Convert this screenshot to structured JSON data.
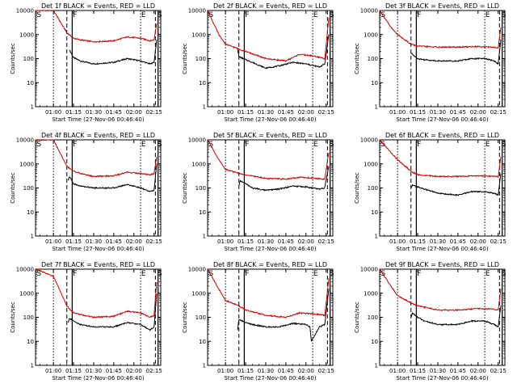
{
  "chart_data": [
    {
      "type": "line",
      "title": "Det 1f BLACK = Events, RED = LLD",
      "xlabel": "Start Time (27-Nov-06 00:46:40)",
      "ylabel": "Counts/sec",
      "yscale": "log",
      "ylim": [
        1,
        10000
      ],
      "x_tick_labels": [
        "01:00",
        "01:15",
        "01:30",
        "01:45",
        "02:00",
        "02:15"
      ],
      "y_tick_labels": [
        "1",
        "10",
        "100",
        "1000",
        "10000"
      ],
      "markers": [
        "S",
        "F",
        "E",
        "S"
      ],
      "series": [
        {
          "color": "#000000",
          "x": [
            "01:12",
            "01:13",
            "01:15",
            "01:20",
            "01:30",
            "01:45",
            "01:55",
            "02:05",
            "02:12",
            "02:15",
            "02:17"
          ],
          "y": [
            220,
            180,
            110,
            80,
            60,
            70,
            100,
            80,
            60,
            70,
            600
          ]
        },
        {
          "color": "#d00000",
          "x": [
            "00:46:40",
            "01:00",
            "01:10",
            "01:15",
            "01:20",
            "01:30",
            "01:45",
            "01:55",
            "02:05",
            "02:12",
            "02:15",
            "02:17"
          ],
          "y": [
            10000,
            10000,
            1200,
            700,
            600,
            500,
            550,
            800,
            700,
            550,
            600,
            3000
          ]
        }
      ]
    },
    {
      "type": "line",
      "title": "Det 2f BLACK = Events, RED = LLD",
      "xlabel": "Start Time (27-Nov-06 00:46:40)",
      "ylabel": "Counts/sec",
      "yscale": "log",
      "ylim": [
        1,
        10000
      ],
      "x_tick_labels": [
        "01:00",
        "01:15",
        "01:30",
        "01:45",
        "02:00",
        "02:15"
      ],
      "y_tick_labels": [
        "1",
        "10",
        "100",
        "1000",
        "10000"
      ],
      "markers": [
        "S",
        "F",
        "E",
        "S"
      ],
      "series": [
        {
          "color": "#000000",
          "x": [
            "01:09",
            "01:10",
            "01:15",
            "01:20",
            "01:30",
            "01:40",
            "01:50",
            "02:00",
            "02:10",
            "02:14",
            "02:17"
          ],
          "y": [
            250,
            120,
            90,
            70,
            40,
            50,
            70,
            60,
            45,
            60,
            1000
          ]
        },
        {
          "color": "#d00000",
          "x": [
            "00:46:40",
            "00:55",
            "01:00",
            "01:10",
            "01:15",
            "01:30",
            "01:45",
            "01:55",
            "02:05",
            "02:14",
            "02:17"
          ],
          "y": [
            10000,
            1000,
            400,
            250,
            200,
            100,
            80,
            150,
            130,
            100,
            5000
          ]
        }
      ]
    },
    {
      "type": "line",
      "title": "Det 3f BLACK = Events, RED = LLD",
      "xlabel": "Start Time (27-Nov-06 00:46:40)",
      "ylabel": "Counts/sec",
      "yscale": "log",
      "ylim": [
        1,
        10000
      ],
      "x_tick_labels": [
        "01:00",
        "01:15",
        "01:30",
        "01:45",
        "02:00",
        "02:15"
      ],
      "y_tick_labels": [
        "1",
        "10",
        "100",
        "1000",
        "10000"
      ],
      "markers": [
        "S",
        "F",
        "E",
        "S"
      ],
      "series": [
        {
          "color": "#000000",
          "x": [
            "01:10",
            "01:11",
            "01:15",
            "01:20",
            "01:30",
            "01:45",
            "01:55",
            "02:05",
            "02:12",
            "02:15",
            "02:17"
          ],
          "y": [
            170,
            150,
            100,
            90,
            80,
            80,
            100,
            100,
            80,
            60,
            600
          ]
        },
        {
          "color": "#d00000",
          "x": [
            "00:46:40",
            "00:55",
            "01:00",
            "01:10",
            "01:15",
            "01:30",
            "01:45",
            "02:00",
            "02:10",
            "02:15",
            "02:17"
          ],
          "y": [
            10000,
            2000,
            1000,
            400,
            330,
            300,
            300,
            320,
            300,
            280,
            2000
          ]
        }
      ]
    },
    {
      "type": "line",
      "title": "Det 4f BLACK = Events, RED = LLD",
      "xlabel": "Start Time (27-Nov-06 00:46:40)",
      "ylabel": "Counts/sec",
      "yscale": "log",
      "ylim": [
        1,
        10000
      ],
      "x_tick_labels": [
        "01:00",
        "01:15",
        "01:30",
        "01:45",
        "02:00",
        "02:15"
      ],
      "y_tick_labels": [
        "1",
        "10",
        "100",
        "1000",
        "10000"
      ],
      "markers": [
        "S",
        "F",
        "E",
        "S"
      ],
      "series": [
        {
          "color": "#000000",
          "x": [
            "01:11",
            "01:12",
            "01:15",
            "01:20",
            "01:30",
            "01:45",
            "01:55",
            "02:05",
            "02:12",
            "02:15",
            "02:17"
          ],
          "y": [
            200,
            300,
            150,
            120,
            100,
            100,
            140,
            100,
            70,
            80,
            1000
          ]
        },
        {
          "color": "#d00000",
          "x": [
            "00:46:40",
            "01:00",
            "01:10",
            "01:15",
            "01:20",
            "01:30",
            "01:45",
            "01:55",
            "02:05",
            "02:12",
            "02:15",
            "02:17"
          ],
          "y": [
            10000,
            10000,
            800,
            500,
            400,
            300,
            320,
            450,
            400,
            350,
            400,
            2000
          ]
        }
      ]
    },
    {
      "type": "line",
      "title": "Det 5f BLACK = Events, RED = LLD",
      "xlabel": "Start Time (27-Nov-06 00:46:40)",
      "ylabel": "Counts/sec",
      "yscale": "log",
      "ylim": [
        1,
        10000
      ],
      "x_tick_labels": [
        "01:00",
        "01:15",
        "01:30",
        "01:45",
        "02:00",
        "02:15"
      ],
      "y_tick_labels": [
        "1",
        "10",
        "100",
        "1000",
        "10000"
      ],
      "markers": [
        "S",
        "F",
        "E",
        "S"
      ],
      "series": [
        {
          "color": "#000000",
          "x": [
            "01:10",
            "01:11",
            "01:15",
            "01:20",
            "01:30",
            "01:40",
            "01:50",
            "02:00",
            "02:10",
            "02:14",
            "02:17"
          ],
          "y": [
            120,
            200,
            150,
            100,
            80,
            90,
            120,
            110,
            90,
            100,
            800
          ]
        },
        {
          "color": "#d00000",
          "x": [
            "00:46:40",
            "00:55",
            "01:00",
            "01:10",
            "01:15",
            "01:30",
            "01:45",
            "01:55",
            "02:05",
            "02:14",
            "02:17"
          ],
          "y": [
            10000,
            1500,
            600,
            400,
            350,
            250,
            230,
            280,
            260,
            230,
            3000
          ]
        }
      ]
    },
    {
      "type": "line",
      "title": "Det 6f BLACK = Events, RED = LLD",
      "xlabel": "Start Time (27-Nov-06 00:46:40)",
      "ylabel": "Counts/sec",
      "yscale": "log",
      "ylim": [
        1,
        10000
      ],
      "x_tick_labels": [
        "01:00",
        "01:15",
        "01:30",
        "01:45",
        "02:00",
        "02:15"
      ],
      "y_tick_labels": [
        "1",
        "10",
        "100",
        "1000",
        "10000"
      ],
      "markers": [
        "S",
        "F",
        "E",
        "S"
      ],
      "series": [
        {
          "color": "#000000",
          "x": [
            "01:10",
            "01:11",
            "01:15",
            "01:20",
            "01:30",
            "01:45",
            "01:55",
            "02:05",
            "02:12",
            "02:15",
            "02:17"
          ],
          "y": [
            100,
            130,
            110,
            90,
            60,
            50,
            70,
            70,
            60,
            50,
            400
          ]
        },
        {
          "color": "#d00000",
          "x": [
            "00:46:40",
            "00:55",
            "01:00",
            "01:10",
            "01:15",
            "01:30",
            "01:45",
            "02:00",
            "02:10",
            "02:15",
            "02:17"
          ],
          "y": [
            10000,
            3000,
            1500,
            500,
            350,
            300,
            300,
            320,
            310,
            290,
            2000
          ]
        }
      ]
    },
    {
      "type": "line",
      "title": "Det 7f BLACK = Events, RED = LLD",
      "xlabel": "Start Time (27-Nov-06 00:46:40)",
      "ylabel": "Counts/sec",
      "yscale": "log",
      "ylim": [
        1,
        10000
      ],
      "x_tick_labels": [
        "01:00",
        "01:15",
        "01:30",
        "01:45",
        "02:00",
        "02:15"
      ],
      "y_tick_labels": [
        "1",
        "10",
        "100",
        "1000",
        "10000"
      ],
      "markers": [
        "S",
        "F",
        "E",
        "S"
      ],
      "series": [
        {
          "color": "#000000",
          "x": [
            "01:11",
            "01:12",
            "01:15",
            "01:20",
            "01:30",
            "01:45",
            "01:55",
            "02:05",
            "02:12",
            "02:15",
            "02:17"
          ],
          "y": [
            60,
            90,
            70,
            50,
            40,
            40,
            60,
            50,
            30,
            40,
            1000
          ]
        },
        {
          "color": "#d00000",
          "x": [
            "00:46:40",
            "01:00",
            "01:10",
            "01:15",
            "01:20",
            "01:30",
            "01:45",
            "01:55",
            "02:05",
            "02:12",
            "02:15",
            "02:17"
          ],
          "y": [
            10000,
            5000,
            300,
            150,
            130,
            100,
            110,
            180,
            150,
            100,
            120,
            3000
          ]
        }
      ]
    },
    {
      "type": "line",
      "title": "Det 8f BLACK = Events, RED = LLD",
      "xlabel": "Start Time (27-Nov-06 00:46:40)",
      "ylabel": "Counts/sec",
      "yscale": "log",
      "ylim": [
        1,
        10000
      ],
      "x_tick_labels": [
        "01:00",
        "01:15",
        "01:30",
        "01:45",
        "02:00",
        "02:15"
      ],
      "y_tick_labels": [
        "1",
        "10",
        "100",
        "1000",
        "10000"
      ],
      "markers": [
        "S",
        "F",
        "E",
        "S"
      ],
      "series": [
        {
          "color": "#000000",
          "x": [
            "01:09",
            "01:10",
            "01:15",
            "01:20",
            "01:30",
            "01:40",
            "01:50",
            "02:00",
            "02:03",
            "02:04",
            "02:10",
            "02:14",
            "02:17"
          ],
          "y": [
            30,
            80,
            60,
            50,
            40,
            40,
            55,
            50,
            40,
            10,
            40,
            50,
            1500
          ]
        },
        {
          "color": "#d00000",
          "x": [
            "00:46:40",
            "00:55",
            "01:00",
            "01:10",
            "01:15",
            "01:30",
            "01:45",
            "01:55",
            "02:05",
            "02:14",
            "02:17"
          ],
          "y": [
            10000,
            1500,
            500,
            300,
            200,
            120,
            100,
            150,
            140,
            120,
            4000
          ]
        }
      ]
    },
    {
      "type": "line",
      "title": "Det 9f BLACK = Events, RED = LLD",
      "xlabel": "Start Time (27-Nov-06 00:46:40)",
      "ylabel": "Counts/sec",
      "yscale": "log",
      "ylim": [
        1,
        10000
      ],
      "x_tick_labels": [
        "01:00",
        "01:15",
        "01:30",
        "01:45",
        "02:00",
        "02:15"
      ],
      "y_tick_labels": [
        "1",
        "10",
        "100",
        "1000",
        "10000"
      ],
      "markers": [
        "S",
        "F",
        "E",
        "S"
      ],
      "series": [
        {
          "color": "#000000",
          "x": [
            "01:10",
            "01:11",
            "01:15",
            "01:20",
            "01:30",
            "01:45",
            "01:55",
            "02:05",
            "02:12",
            "02:15",
            "02:17"
          ],
          "y": [
            100,
            150,
            100,
            70,
            50,
            50,
            70,
            70,
            50,
            40,
            300
          ]
        },
        {
          "color": "#d00000",
          "x": [
            "00:46:40",
            "00:55",
            "01:00",
            "01:10",
            "01:15",
            "01:30",
            "01:45",
            "02:00",
            "02:10",
            "02:15",
            "02:17"
          ],
          "y": [
            10000,
            2000,
            800,
            400,
            300,
            200,
            200,
            230,
            220,
            200,
            1500
          ]
        }
      ]
    }
  ]
}
